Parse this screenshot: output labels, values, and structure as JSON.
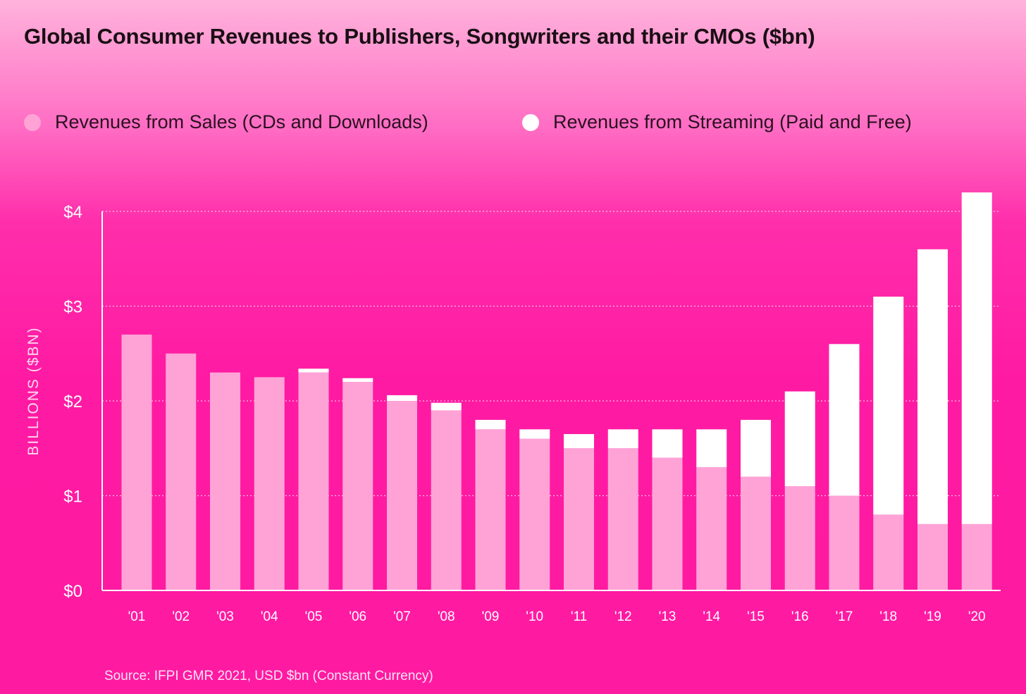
{
  "colors": {
    "sales": "#ffa3d6",
    "streaming": "#ffffff",
    "grid": "#ffc6e6",
    "axis": "#ffffff"
  },
  "chart_data": {
    "type": "bar",
    "stacked": true,
    "title": "Global Consumer Revenues to Publishers, Songwriters and their CMOs ($bn)",
    "ylabel": "BILLIONS ($BN)",
    "xlabel": "",
    "ylim": [
      0,
      4
    ],
    "yticks": [
      0,
      1,
      2,
      3,
      4
    ],
    "ytick_labels": [
      "$0",
      "$1",
      "$2",
      "$3",
      "$4"
    ],
    "grid": "horizontal dotted",
    "legend_position": "top-left",
    "categories": [
      "'01",
      "'02",
      "'03",
      "'04",
      "'05",
      "'06",
      "'07",
      "'08",
      "'09",
      "'10",
      "'11",
      "'12",
      "'13",
      "'14",
      "'15",
      "'16",
      "'17",
      "'18",
      "'19",
      "'20"
    ],
    "series": [
      {
        "name": "Revenues from Sales (CDs and Downloads)",
        "values": [
          2.7,
          2.5,
          2.3,
          2.25,
          2.3,
          2.2,
          2.0,
          1.9,
          1.7,
          1.6,
          1.5,
          1.5,
          1.4,
          1.3,
          1.2,
          1.1,
          1.0,
          0.8,
          0.7,
          0.7
        ]
      },
      {
        "name": "Revenues from Streaming (Paid and Free)",
        "values": [
          0,
          0,
          0,
          0,
          0.04,
          0.04,
          0.06,
          0.08,
          0.1,
          0.1,
          0.15,
          0.2,
          0.3,
          0.4,
          0.6,
          1.0,
          1.6,
          2.3,
          2.9,
          3.5
        ]
      }
    ],
    "source": "Source: IFPI GMR 2021, USD $bn (Constant Currency)"
  }
}
